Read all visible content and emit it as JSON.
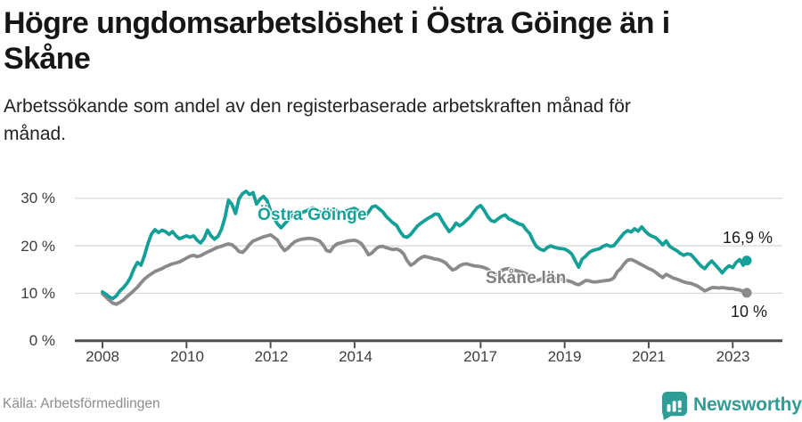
{
  "header": {
    "title": "Högre ungdomsarbetslöshet i Östra Göinge än i Skåne",
    "title_lines": [
      "Högre ungdomsarbetslöshet i Östra Göinge än i",
      "Skåne"
    ],
    "subtitle": "Arbetssökande som andel av den registerbaserade arbetskraften månad för månad.",
    "subtitle_lines": [
      "Arbetssökande som andel av den registerbaserade arbetskraften månad för",
      "månad."
    ]
  },
  "footer": {
    "source": "Källa: Arbetsförmedlingen",
    "brand": "Newsworthy",
    "brand_color": "#2f9c95",
    "logo_icon": "bar-chart-speech-bubble"
  },
  "colors": {
    "ostra_goinge": "#14a098",
    "skane": "#8a8a8a",
    "gridline": "#d9d9d9",
    "axis": "#4f4f4f"
  },
  "chart_data": {
    "type": "line",
    "x_unit": "month",
    "x_start": "2008-01",
    "x_end": "2023-05",
    "x_ticks": [
      2008,
      2010,
      2012,
      2014,
      2017,
      2019,
      2021,
      2023
    ],
    "x_tick_labels": [
      "2008",
      "2010",
      "2012",
      "2014",
      "2017",
      "2019",
      "2021",
      "2023"
    ],
    "y_ticks_top_down": [
      30,
      20,
      10,
      0
    ],
    "y_tick_labels_top_down": [
      "30 %",
      "20 %",
      "10 %",
      "0 %"
    ],
    "ylim": [
      0,
      33
    ],
    "grid": "horizontal",
    "legend": "inline-series-labels",
    "series": [
      {
        "name": "Östra Göinge",
        "color": "#14a098",
        "end_label": "16,9 %",
        "end_value": 16.9,
        "values": [
          10.3,
          9.8,
          9.2,
          8.9,
          9.5,
          10.5,
          11.2,
          12.1,
          13.3,
          15.2,
          16.5,
          15.9,
          18.0,
          20.5,
          22.5,
          23.4,
          22.8,
          23.3,
          23.0,
          22.4,
          23.0,
          22.1,
          21.5,
          21.8,
          22.1,
          21.8,
          22.1,
          21.2,
          20.6,
          21.5,
          23.3,
          22.1,
          21.4,
          22.0,
          23.5,
          26.0,
          29.6,
          28.7,
          26.8,
          29.9,
          31.0,
          31.5,
          30.8,
          31.2,
          28.8,
          29.8,
          30.4,
          29.5,
          27.4,
          25.8,
          24.6,
          23.8,
          24.6,
          25.4,
          26.4,
          27.0,
          27.3,
          27.0,
          27.3,
          27.6,
          28.0,
          27.7,
          27.2,
          26.6,
          26.9,
          27.2,
          27.6,
          27.4,
          27.0,
          27.2,
          27.4,
          27.7,
          27.9,
          27.4,
          26.7,
          26.2,
          27.1,
          28.2,
          28.4,
          27.8,
          27.2,
          26.2,
          25.5,
          24.8,
          24.3,
          23.0,
          22.0,
          21.8,
          22.4,
          23.3,
          24.2,
          24.8,
          25.3,
          25.8,
          26.2,
          26.7,
          26.6,
          25.3,
          24.1,
          23.0,
          23.7,
          24.8,
          24.2,
          24.7,
          25.4,
          26.1,
          27.1,
          28.0,
          28.5,
          27.5,
          26.2,
          25.3,
          25.1,
          25.7,
          26.2,
          26.5,
          25.7,
          25.4,
          25.0,
          24.6,
          24.4,
          23.4,
          22.6,
          21.0,
          19.8,
          19.3,
          19.0,
          19.6,
          20.0,
          19.7,
          19.5,
          19.4,
          19.3,
          18.9,
          18.3,
          16.9,
          15.5,
          17.2,
          17.8,
          18.6,
          19.0,
          19.2,
          19.4,
          19.9,
          20.2,
          19.9,
          20.0,
          20.9,
          21.8,
          22.7,
          23.2,
          22.9,
          23.6,
          23.1,
          24.0,
          23.1,
          22.4,
          22.0,
          21.7,
          21.0,
          20.2,
          21.0,
          19.9,
          19.4,
          19.0,
          18.4,
          18.0,
          18.3,
          18.2,
          17.4,
          16.5,
          15.7,
          15.2,
          16.1,
          16.8,
          16.0,
          15.2,
          14.3,
          15.2,
          15.8,
          15.4,
          16.5,
          17.1,
          15.9,
          16.9
        ]
      },
      {
        "name": "Skåne län",
        "color": "#8a8a8a",
        "end_label": "10 %",
        "end_value": 10.0,
        "values": [
          9.9,
          9.2,
          8.5,
          7.9,
          7.7,
          8.1,
          8.6,
          9.3,
          9.9,
          10.6,
          11.3,
          12.2,
          13.0,
          13.6,
          14.1,
          14.6,
          14.9,
          15.2,
          15.6,
          15.9,
          16.2,
          16.4,
          16.6,
          17.0,
          17.4,
          17.8,
          18.0,
          17.7,
          17.9,
          18.3,
          18.7,
          19.0,
          19.4,
          19.7,
          19.9,
          20.2,
          20.4,
          20.2,
          19.6,
          18.8,
          18.6,
          19.3,
          20.3,
          21.0,
          21.3,
          21.6,
          21.9,
          22.1,
          22.3,
          21.8,
          21.2,
          19.9,
          19.0,
          19.5,
          20.3,
          20.9,
          21.2,
          21.4,
          21.5,
          21.6,
          21.5,
          21.3,
          21.0,
          20.2,
          19.0,
          18.8,
          19.8,
          20.4,
          20.6,
          20.8,
          21.0,
          21.1,
          21.2,
          20.9,
          20.4,
          19.3,
          18.1,
          18.5,
          19.3,
          19.8,
          19.9,
          19.6,
          19.4,
          19.2,
          19.3,
          19.0,
          18.3,
          16.9,
          15.9,
          16.3,
          17.0,
          17.5,
          17.8,
          17.6,
          17.4,
          17.2,
          17.1,
          16.8,
          16.4,
          15.6,
          14.9,
          15.2,
          15.8,
          16.1,
          16.2,
          16.0,
          15.8,
          15.7,
          15.6,
          15.4,
          15.1,
          14.5,
          13.9,
          14.2,
          14.8,
          15.1,
          15.2,
          15.0,
          14.8,
          14.6,
          14.4,
          14.1,
          13.8,
          13.2,
          12.7,
          12.9,
          13.3,
          13.5,
          13.4,
          13.2,
          13.0,
          12.9,
          12.8,
          12.6,
          12.4,
          12.0,
          11.8,
          12.2,
          12.7,
          12.6,
          12.4,
          12.4,
          12.5,
          12.6,
          12.7,
          12.8,
          13.2,
          14.5,
          15.2,
          16.2,
          17.0,
          17.1,
          16.8,
          16.4,
          16.0,
          15.6,
          15.2,
          14.9,
          14.4,
          13.8,
          13.3,
          14.0,
          13.6,
          13.2,
          13.0,
          12.7,
          12.4,
          12.2,
          12.1,
          11.8,
          11.5,
          11.0,
          10.5,
          10.8,
          11.2,
          11.2,
          11.1,
          11.2,
          11.1,
          11.0,
          11.0,
          10.8,
          10.7,
          10.4,
          10.1
        ]
      }
    ]
  }
}
